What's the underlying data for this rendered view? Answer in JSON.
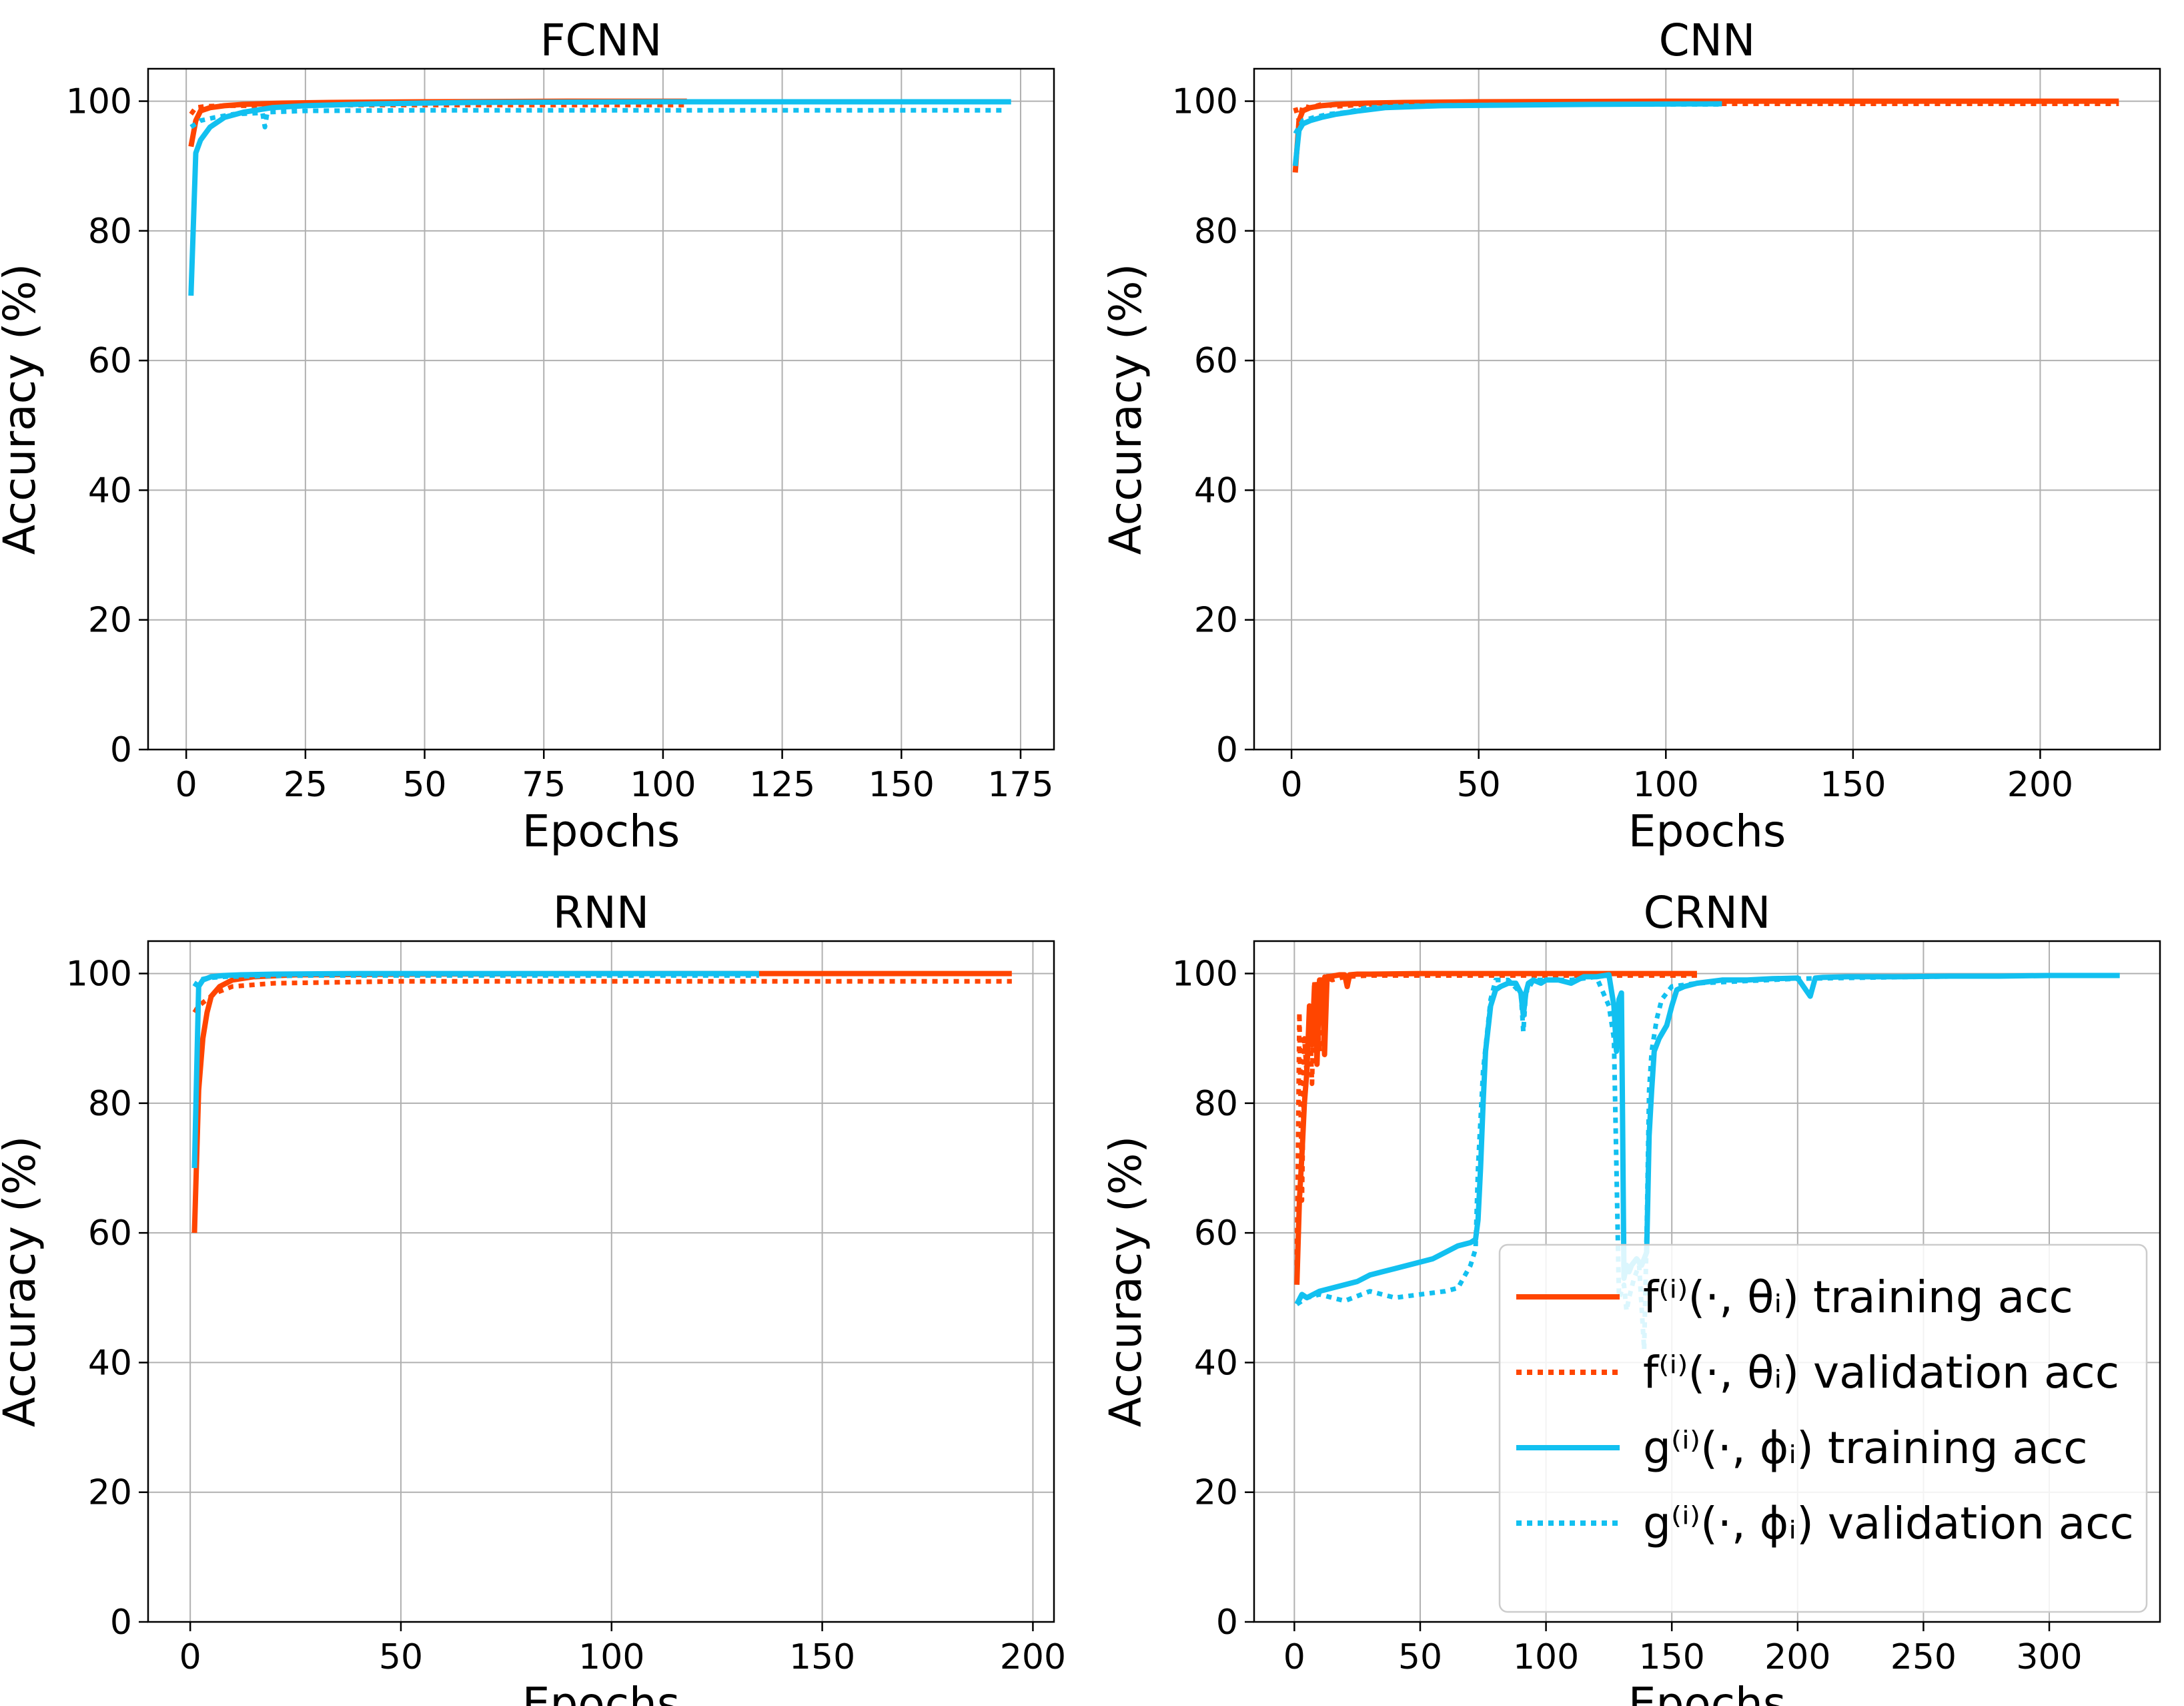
{
  "colors": {
    "f_series": "#ff4500",
    "g_series": "#12c0f0",
    "grid": "#b0b0b0",
    "axes": "#000000"
  },
  "legend": {
    "placement": "lower-right",
    "subplot": 3,
    "entries": [
      {
        "label": "f⁽ⁱ⁾(·, θᵢ) training acc",
        "color": "#ff4500",
        "style": "solid"
      },
      {
        "label": "f⁽ⁱ⁾(·, θᵢ) validation acc",
        "color": "#ff4500",
        "style": "dotted"
      },
      {
        "label": "g⁽ⁱ⁾(·, ϕᵢ) training acc",
        "color": "#12c0f0",
        "style": "solid"
      },
      {
        "label": "g⁽ⁱ⁾(·, ϕᵢ) validation acc",
        "color": "#12c0f0",
        "style": "dotted"
      }
    ]
  },
  "chart_data": [
    {
      "type": "line",
      "title": "FCNN",
      "xlabel": "Epochs",
      "ylabel": "Accuracy (%)",
      "xlim": [
        -8,
        182
      ],
      "ylim": [
        0,
        105
      ],
      "xticks": [
        0,
        25,
        50,
        75,
        100,
        125,
        150,
        175
      ],
      "yticks": [
        0,
        20,
        40,
        60,
        80,
        100
      ],
      "grid": true,
      "series": [
        {
          "color": "#ff4500",
          "style": "dotted",
          "x": [
            1,
            2,
            4,
            8,
            15,
            30,
            50,
            80,
            105
          ],
          "y": [
            98,
            99,
            99.2,
            99.3,
            99.3,
            99.4,
            99.4,
            99.4,
            99.4
          ]
        },
        {
          "color": "#ff4500",
          "style": "solid",
          "x": [
            1,
            2,
            3,
            5,
            8,
            12,
            20,
            30,
            50,
            80,
            105
          ],
          "y": [
            93,
            97,
            98.5,
            99,
            99.3,
            99.5,
            99.7,
            99.8,
            99.9,
            100,
            100
          ]
        },
        {
          "color": "#12c0f0",
          "style": "dotted",
          "x": [
            1,
            3,
            6,
            10,
            16,
            16.5,
            17,
            25,
            50,
            100,
            150,
            172
          ],
          "y": [
            96,
            97,
            97.5,
            98,
            98.2,
            96,
            98.3,
            98.5,
            98.6,
            98.6,
            98.6,
            98.6
          ]
        },
        {
          "color": "#12c0f0",
          "style": "solid",
          "x": [
            1,
            2,
            3,
            5,
            8,
            12,
            18,
            25,
            40,
            60,
            100,
            173
          ],
          "y": [
            70,
            92,
            94,
            96,
            97.5,
            98.3,
            99,
            99.3,
            99.6,
            99.8,
            99.9,
            99.9
          ]
        }
      ]
    },
    {
      "type": "line",
      "title": "CNN",
      "xlabel": "Epochs",
      "ylabel": "Accuracy (%)",
      "xlim": [
        -10,
        232
      ],
      "ylim": [
        0,
        105
      ],
      "xticks": [
        0,
        50,
        100,
        150,
        200
      ],
      "yticks": [
        0,
        20,
        40,
        60,
        80,
        100
      ],
      "grid": true,
      "series": [
        {
          "color": "#ff4500",
          "style": "dotted",
          "x": [
            1,
            2,
            3,
            5,
            8,
            12,
            20,
            30,
            50,
            100,
            150,
            200,
            221
          ],
          "y": [
            99,
            97,
            99.3,
            99,
            99.5,
            99.2,
            99.5,
            99.5,
            99.6,
            99.6,
            99.6,
            99.6,
            99.6
          ]
        },
        {
          "color": "#ff4500",
          "style": "solid",
          "x": [
            1,
            2,
            3,
            5,
            8,
            12,
            20,
            30,
            50,
            100,
            150,
            200,
            221
          ],
          "y": [
            89,
            97,
            98.5,
            99,
            99.3,
            99.5,
            99.7,
            99.8,
            99.9,
            100,
            100,
            100,
            100
          ]
        },
        {
          "color": "#12c0f0",
          "style": "dotted",
          "x": [
            1,
            3,
            6,
            10,
            15,
            20,
            30,
            50,
            80,
            115
          ],
          "y": [
            95,
            97,
            97.5,
            98,
            98.3,
            99,
            99.3,
            99.4,
            99.5,
            99.5
          ]
        },
        {
          "color": "#12c0f0",
          "style": "solid",
          "x": [
            1,
            2,
            3,
            5,
            8,
            12,
            18,
            25,
            40,
            60,
            80,
            115
          ],
          "y": [
            90,
            95.5,
            96.5,
            97,
            97.5,
            98,
            98.5,
            99,
            99.3,
            99.4,
            99.5,
            99.6
          ]
        }
      ]
    },
    {
      "type": "line",
      "title": "RNN",
      "xlabel": "Epochs",
      "ylabel": "Accuracy (%)",
      "xlim": [
        -10,
        205
      ],
      "ylim": [
        0,
        105
      ],
      "xticks": [
        0,
        50,
        100,
        150,
        200
      ],
      "yticks": [
        0,
        20,
        40,
        60,
        80,
        100
      ],
      "grid": true,
      "series": [
        {
          "color": "#ff4500",
          "style": "dotted",
          "x": [
            1,
            2,
            4,
            6,
            10,
            20,
            50,
            100,
            150,
            195
          ],
          "y": [
            94,
            95,
            96,
            97,
            98,
            98.5,
            98.8,
            98.8,
            98.8,
            98.8
          ]
        },
        {
          "color": "#ff4500",
          "style": "solid",
          "x": [
            1,
            2,
            3,
            4,
            5,
            7,
            10,
            15,
            25,
            50,
            100,
            150,
            195
          ],
          "y": [
            60,
            82,
            90,
            94,
            96.5,
            98,
            99,
            99.5,
            99.8,
            99.9,
            100,
            100,
            100
          ]
        },
        {
          "color": "#12c0f0",
          "style": "dotted",
          "x": [
            1,
            2,
            4,
            8,
            15,
            30,
            60,
            100,
            135
          ],
          "y": [
            98,
            99,
            99.3,
            99.5,
            99.6,
            99.7,
            99.7,
            99.7,
            99.7
          ]
        },
        {
          "color": "#12c0f0",
          "style": "solid",
          "x": [
            1,
            2,
            3,
            5,
            8,
            12,
            20,
            40,
            80,
            135
          ],
          "y": [
            70,
            98,
            99,
            99.5,
            99.7,
            99.8,
            99.9,
            100,
            100,
            100
          ]
        }
      ]
    },
    {
      "type": "line",
      "title": "CRNN",
      "xlabel": "Epochs",
      "ylabel": "Accuracy (%)",
      "xlim": [
        -16,
        344
      ],
      "ylim": [
        0,
        105
      ],
      "xticks": [
        0,
        50,
        100,
        150,
        200,
        250,
        300
      ],
      "yticks": [
        0,
        20,
        40,
        60,
        80,
        100
      ],
      "grid": true,
      "series": [
        {
          "color": "#ff4500",
          "style": "dotted",
          "x": [
            1,
            2,
            3,
            4,
            5,
            6,
            7,
            8,
            10,
            12,
            15,
            20,
            30,
            60,
            100,
            130,
            160
          ],
          "y": [
            55,
            94,
            65,
            90,
            84,
            95,
            83,
            99,
            88,
            99.5,
            99,
            99.5,
            99.7,
            99.7,
            99.7,
            99.7,
            99.7
          ]
        },
        {
          "color": "#ff4500",
          "style": "solid",
          "x": [
            1,
            2,
            3,
            4,
            5,
            6,
            7,
            8,
            9,
            10,
            11,
            12,
            13,
            15,
            18,
            20,
            21,
            22,
            25,
            30,
            50,
            100,
            160
          ],
          "y": [
            52,
            65,
            72,
            80,
            85,
            95,
            89,
            98,
            86,
            99,
            99,
            87.5,
            99.5,
            99.6,
            99.8,
            99.8,
            98,
            99.8,
            99.9,
            99.9,
            100,
            100,
            100
          ]
        },
        {
          "color": "#12c0f0",
          "style": "dotted",
          "x": [
            1,
            5,
            10,
            20,
            30,
            40,
            50,
            60,
            65,
            70,
            72,
            73,
            75,
            78,
            80,
            85,
            90,
            91,
            92,
            95,
            100,
            110,
            120,
            125,
            127,
            129,
            131,
            132,
            133,
            135,
            137,
            139,
            140,
            141,
            142,
            144,
            146,
            150,
            160,
            200,
            250,
            300,
            328
          ],
          "y": [
            49,
            50,
            50.5,
            49.5,
            51,
            50,
            50.5,
            51,
            51.5,
            55,
            57.5,
            70,
            85,
            96,
            99,
            99,
            97,
            91,
            97,
            99,
            99,
            99,
            99.5,
            95,
            90,
            50,
            52,
            48,
            50,
            53,
            55,
            42,
            60,
            82,
            88,
            93,
            96,
            98,
            98.5,
            99.2,
            99.5,
            99.7,
            99.7
          ]
        },
        {
          "color": "#12c0f0",
          "style": "solid",
          "x": [
            1,
            3,
            5,
            10,
            15,
            20,
            25,
            30,
            35,
            40,
            45,
            50,
            55,
            60,
            65,
            70,
            72,
            73,
            74,
            75,
            76,
            78,
            80,
            82,
            85,
            88,
            90,
            91,
            92,
            93,
            95,
            98,
            100,
            105,
            110,
            115,
            120,
            125,
            127,
            128,
            129,
            130,
            131,
            132,
            133,
            134,
            136,
            138,
            140,
            141,
            142,
            143,
            145,
            148,
            150,
            152,
            155,
            160,
            170,
            180,
            190,
            200,
            205,
            207,
            210,
            220,
            240,
            260,
            280,
            300,
            320,
            328
          ],
          "y": [
            49,
            50.5,
            50,
            51,
            51.5,
            52,
            52.5,
            53.5,
            54,
            54.5,
            55,
            55.5,
            56,
            57,
            58,
            58.5,
            59,
            62,
            70,
            80,
            88,
            95,
            97.5,
            98,
            98.5,
            98.5,
            97,
            93.5,
            97,
            98.5,
            99,
            98.5,
            99,
            99,
            98.5,
            99.5,
            99.5,
            99.8,
            95,
            88,
            96,
            97,
            53,
            55,
            54,
            55,
            56,
            55,
            57,
            75,
            82,
            88,
            90,
            92,
            95,
            97.5,
            98,
            98.5,
            99,
            99,
            99.2,
            99.3,
            96.5,
            99.3,
            99.4,
            99.5,
            99.5,
            99.6,
            99.6,
            99.7,
            99.7,
            99.7
          ]
        }
      ]
    }
  ]
}
